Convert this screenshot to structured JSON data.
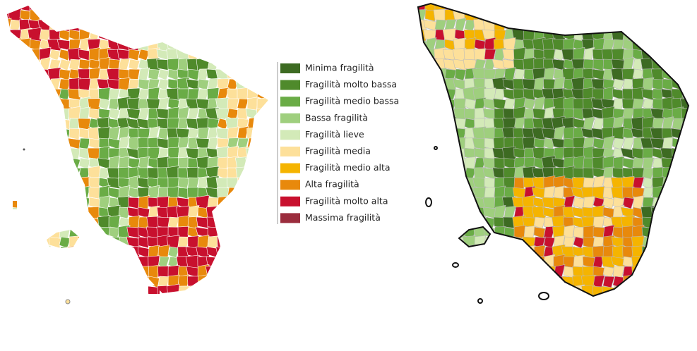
{
  "legend": {
    "items": [
      {
        "label": "Minima fragilità",
        "color": "#3d6b22"
      },
      {
        "label": "Fragilità molto bassa",
        "color": "#4f8a2b"
      },
      {
        "label": "Fragilità medio bassa",
        "color": "#6aac46"
      },
      {
        "label": "Bassa fragilità",
        "color": "#9fcf7e"
      },
      {
        "label": "Fragilità lieve",
        "color": "#d3eab8"
      },
      {
        "label": "Fragilità media",
        "color": "#fde09a"
      },
      {
        "label": "Fragilità medio alta",
        "color": "#f5b400"
      },
      {
        "label": "Alta fragilità",
        "color": "#e8890c"
      },
      {
        "label": "Fragilità molto alta",
        "color": "#c8102e"
      },
      {
        "label": "Massima fragilità",
        "color": "#9b2d3d"
      }
    ]
  }
}
